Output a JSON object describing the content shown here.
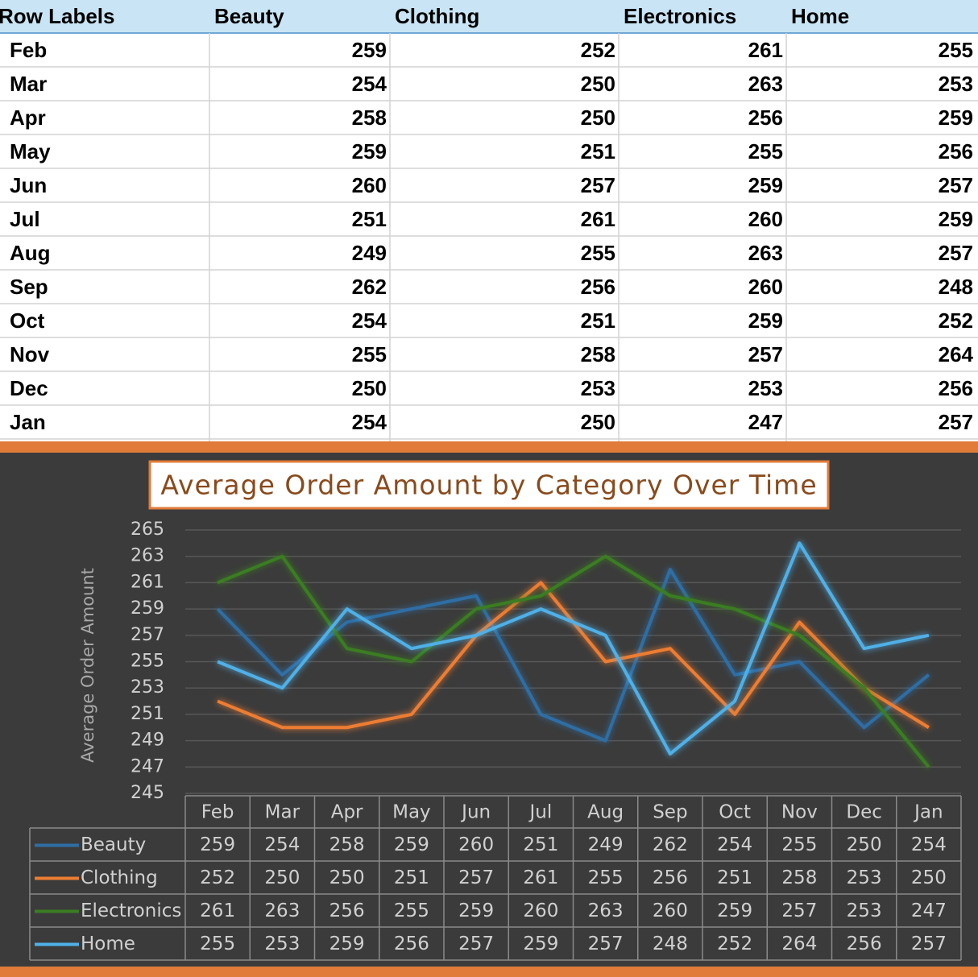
{
  "table": {
    "header": "Row Labels"
  },
  "chart_data": {
    "type": "line",
    "title": "Average Order Amount by Category Over Time",
    "y_label": "Average Order Amount",
    "categories": [
      "Feb",
      "Mar",
      "Apr",
      "May",
      "Jun",
      "Jul",
      "Aug",
      "Sep",
      "Oct",
      "Nov",
      "Dec",
      "Jan"
    ],
    "series": [
      {
        "name": "Beauty",
        "color": "#2f6ea5",
        "values": [
          259,
          254,
          258,
          259,
          260,
          251,
          249,
          262,
          254,
          255,
          250,
          254
        ]
      },
      {
        "name": "Clothing",
        "color": "#ed7d31",
        "values": [
          252,
          250,
          250,
          251,
          257,
          261,
          255,
          256,
          251,
          258,
          253,
          250
        ]
      },
      {
        "name": "Electronics",
        "color": "#3a7d22",
        "values": [
          261,
          263,
          256,
          255,
          259,
          260,
          263,
          260,
          259,
          257,
          253,
          247
        ]
      },
      {
        "name": "Home",
        "color": "#4fb0e8",
        "values": [
          255,
          253,
          259,
          256,
          257,
          259,
          257,
          248,
          252,
          264,
          256,
          257
        ]
      }
    ],
    "ylim": [
      245,
      265
    ],
    "yticks": [
      245,
      247,
      249,
      251,
      253,
      255,
      257,
      259,
      261,
      263,
      265
    ],
    "grid": true
  }
}
